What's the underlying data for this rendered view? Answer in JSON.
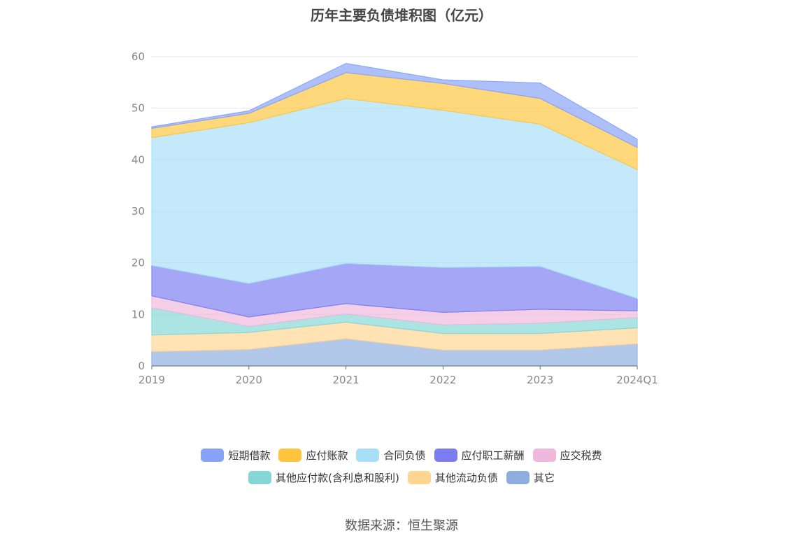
{
  "chart_data": {
    "type": "area",
    "stacked": true,
    "title": "历年主要负债堆积图（亿元）",
    "categories": [
      "2019",
      "2020",
      "2021",
      "2022",
      "2023",
      "2024Q1"
    ],
    "ylim": [
      0,
      60
    ],
    "yticks": [
      0,
      10,
      20,
      30,
      40,
      50,
      60
    ],
    "grid": true,
    "legend_position": "bottom",
    "series": [
      {
        "name": "其它",
        "color": "#8eaee0",
        "values": [
          2.8,
          3.2,
          5.3,
          3.1,
          3.1,
          4.3
        ]
      },
      {
        "name": "其他流动负债",
        "color": "#ffd591",
        "values": [
          3.2,
          3.3,
          3.2,
          3.2,
          3.2,
          3.1
        ]
      },
      {
        "name": "其他应付款(含利息和股利)",
        "color": "#85d6d6",
        "values": [
          5.3,
          1.2,
          1.6,
          1.7,
          2.0,
          2.0
        ]
      },
      {
        "name": "应交税费",
        "color": "#f0b8dc",
        "values": [
          2.3,
          1.8,
          2.0,
          2.4,
          2.7,
          1.3
        ]
      },
      {
        "name": "应付职工薪酬",
        "color": "#7a7cf0",
        "values": [
          5.9,
          6.5,
          7.8,
          8.7,
          8.3,
          2.4
        ]
      },
      {
        "name": "合同负债",
        "color": "#a8dff8",
        "values": [
          24.8,
          31.2,
          32.0,
          30.5,
          27.6,
          25.0
        ]
      },
      {
        "name": "应付账款",
        "color": "#ffc53d",
        "values": [
          1.8,
          1.8,
          5.0,
          5.2,
          5.0,
          4.3
        ]
      },
      {
        "name": "短期借款",
        "color": "#87a2f7",
        "values": [
          0.3,
          0.5,
          1.8,
          0.7,
          3.0,
          1.6
        ]
      }
    ],
    "legend_order": [
      "短期借款",
      "应付账款",
      "合同负债",
      "应付职工薪酬",
      "应交税费",
      "其他应付款(含利息和股利)",
      "其他流动负债",
      "其它"
    ]
  },
  "source": "数据来源：恒生聚源"
}
